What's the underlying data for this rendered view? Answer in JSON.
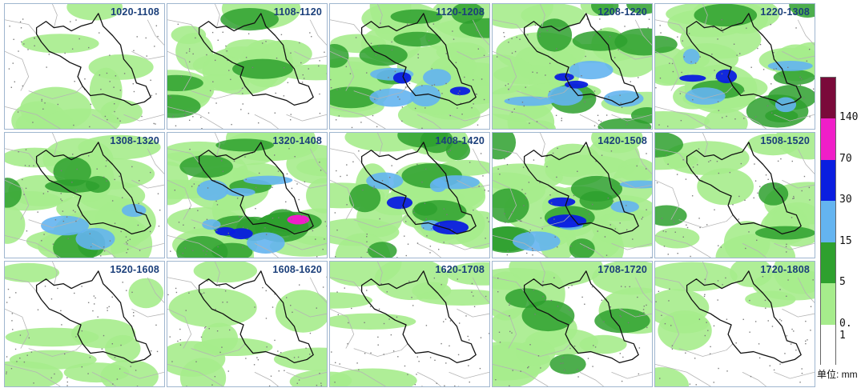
{
  "panels": [
    {
      "label": "1020-1108",
      "intensity": 1
    },
    {
      "label": "1108-1120",
      "intensity": 2
    },
    {
      "label": "1120-1208",
      "intensity": 4
    },
    {
      "label": "1208-1220",
      "intensity": 4
    },
    {
      "label": "1220-1308",
      "intensity": 4
    },
    {
      "label": "1308-1320",
      "intensity": 3
    },
    {
      "label": "1320-1408",
      "intensity": 5
    },
    {
      "label": "1408-1420",
      "intensity": 4
    },
    {
      "label": "1420-1508",
      "intensity": 4
    },
    {
      "label": "1508-1520",
      "intensity": 2
    },
    {
      "label": "1520-1608",
      "intensity": 1
    },
    {
      "label": "1608-1620",
      "intensity": 1
    },
    {
      "label": "1620-1708",
      "intensity": 1
    },
    {
      "label": "1708-1720",
      "intensity": 2
    },
    {
      "label": "1720-1808",
      "intensity": 1
    }
  ],
  "legend": {
    "thresholds": [
      "140",
      "70",
      "30",
      "15",
      "5",
      "0. 1"
    ],
    "colors": [
      "#7a0a3a",
      "#f01ec8",
      "#0a1ee0",
      "#64b4f0",
      "#2ea02e",
      "#a6ec8c",
      "#ffffff"
    ],
    "unit_label": "单位: mm"
  },
  "colors": {
    "panel_border": "#9fb6cf",
    "title": "#1b3f7a",
    "province_outline": "#111111",
    "county_lines": "#b4b4b4"
  }
}
